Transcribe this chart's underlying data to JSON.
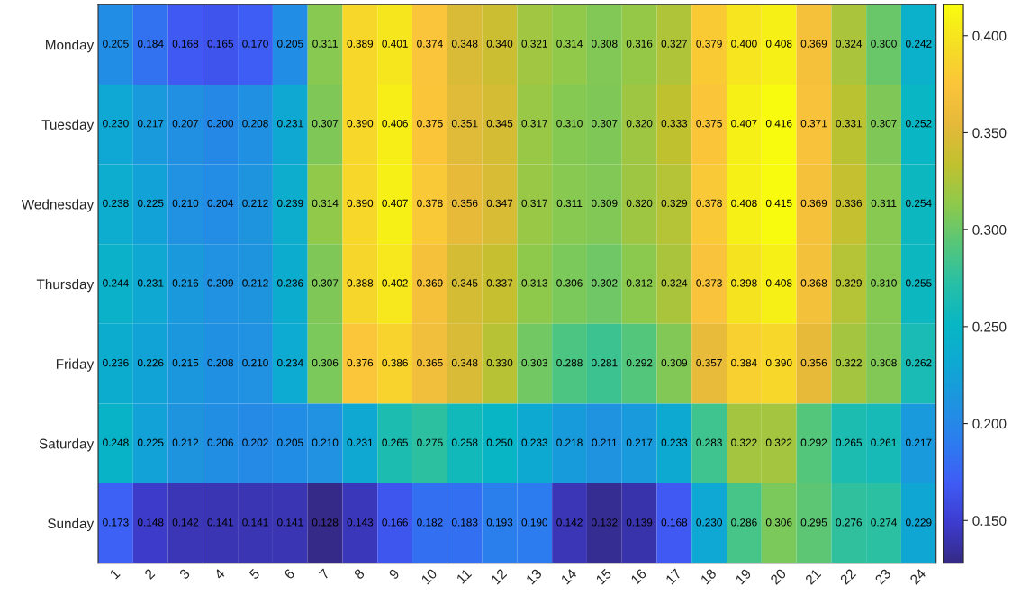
{
  "chart_data": {
    "type": "heatmap",
    "categories": [
      "1",
      "2",
      "3",
      "4",
      "5",
      "6",
      "7",
      "8",
      "9",
      "10",
      "11",
      "12",
      "13",
      "14",
      "15",
      "16",
      "17",
      "18",
      "19",
      "20",
      "21",
      "22",
      "23",
      "24"
    ],
    "y_categories": [
      "Monday",
      "Tuesday",
      "Wednesday",
      "Thursday",
      "Friday",
      "Saturday",
      "Sunday"
    ],
    "cells": [
      [
        0.205,
        0.184,
        0.168,
        0.165,
        0.17,
        0.205,
        0.311,
        0.389,
        0.401,
        0.374,
        0.348,
        0.34,
        0.321,
        0.314,
        0.308,
        0.316,
        0.327,
        0.379,
        0.4,
        0.408,
        0.369,
        0.324,
        0.3,
        0.242
      ],
      [
        0.23,
        0.217,
        0.207,
        0.2,
        0.208,
        0.231,
        0.307,
        0.39,
        0.406,
        0.375,
        0.351,
        0.345,
        0.317,
        0.31,
        0.307,
        0.32,
        0.333,
        0.375,
        0.407,
        0.416,
        0.371,
        0.331,
        0.307,
        0.252
      ],
      [
        0.238,
        0.225,
        0.21,
        0.204,
        0.212,
        0.239,
        0.314,
        0.39,
        0.407,
        0.378,
        0.356,
        0.347,
        0.317,
        0.311,
        0.309,
        0.32,
        0.329,
        0.378,
        0.408,
        0.415,
        0.369,
        0.336,
        0.311,
        0.254
      ],
      [
        0.244,
        0.231,
        0.216,
        0.209,
        0.212,
        0.236,
        0.307,
        0.388,
        0.402,
        0.369,
        0.345,
        0.337,
        0.313,
        0.306,
        0.302,
        0.312,
        0.324,
        0.373,
        0.398,
        0.408,
        0.368,
        0.329,
        0.31,
        0.255
      ],
      [
        0.236,
        0.226,
        0.215,
        0.208,
        0.21,
        0.234,
        0.306,
        0.376,
        0.386,
        0.365,
        0.348,
        0.33,
        0.303,
        0.288,
        0.281,
        0.292,
        0.309,
        0.357,
        0.384,
        0.39,
        0.356,
        0.322,
        0.308,
        0.262
      ],
      [
        0.248,
        0.225,
        0.212,
        0.206,
        0.202,
        0.205,
        0.21,
        0.231,
        0.265,
        0.275,
        0.258,
        0.25,
        0.233,
        0.218,
        0.211,
        0.217,
        0.233,
        0.283,
        0.322,
        0.322,
        0.292,
        0.265,
        0.261,
        0.217
      ],
      [
        0.173,
        0.148,
        0.142,
        0.141,
        0.141,
        0.141,
        0.128,
        0.143,
        0.166,
        0.182,
        0.183,
        0.193,
        0.19,
        0.142,
        0.132,
        0.139,
        0.168,
        0.23,
        0.286,
        0.306,
        0.295,
        0.276,
        0.274,
        0.229
      ]
    ],
    "cell_labels": [
      [
        "0.205",
        "0.184",
        "0.168",
        "0.165",
        "0.170",
        "0.205",
        "0.311",
        "0.389",
        "0.401",
        "0.374",
        "0.348",
        "0.340",
        "0.321",
        "0.314",
        "0.308",
        "0.316",
        "0.327",
        "0.379",
        "0.400",
        "0.408",
        "0.369",
        "0.324",
        "0.300",
        "0.242"
      ],
      [
        "0.230",
        "0.217",
        "0.207",
        "0.200",
        "0.208",
        "0.231",
        "0.307",
        "0.390",
        "0.406",
        "0.375",
        "0.351",
        "0.345",
        "0.317",
        "0.310",
        "0.307",
        "0.320",
        "0.333",
        "0.375",
        "0.407",
        "0.416",
        "0.371",
        "0.331",
        "0.307",
        "0.252"
      ],
      [
        "0.238",
        "0.225",
        "0.210",
        "0.204",
        "0.212",
        "0.239",
        "0.314",
        "0.390",
        "0.407",
        "0.378",
        "0.356",
        "0.347",
        "0.317",
        "0.311",
        "0.309",
        "0.320",
        "0.329",
        "0.378",
        "0.408",
        "0.415",
        "0.369",
        "0.336",
        "0.311",
        "0.254"
      ],
      [
        "0.244",
        "0.231",
        "0.216",
        "0.209",
        "0.212",
        "0.236",
        "0.307",
        "0.388",
        "0.402",
        "0.369",
        "0.345",
        "0.337",
        "0.313",
        "0.306",
        "0.302",
        "0.312",
        "0.324",
        "0.373",
        "0.398",
        "0.408",
        "0.368",
        "0.329",
        "0.310",
        "0.255"
      ],
      [
        "0.236",
        "0.226",
        "0.215",
        "0.208",
        "0.210",
        "0.234",
        "0.306",
        "0.376",
        "0.386",
        "0.365",
        "0.348",
        "0.330",
        "0.303",
        "0.288",
        "0.281",
        "0.292",
        "0.309",
        "0.357",
        "0.384",
        "0.390",
        "0.356",
        "0.322",
        "0.308",
        "0.262"
      ],
      [
        "0.248",
        "0.225",
        "0.212",
        "0.206",
        "0.202",
        "0.205",
        "0.210",
        "0.231",
        "0.265",
        "0.275",
        "0.258",
        "0.250",
        "0.233",
        "0.218",
        "0.211",
        "0.217",
        "0.233",
        "0.283",
        "0.322",
        "0.322",
        "0.292",
        "0.265",
        "0.261",
        "0.217"
      ],
      [
        "0.173",
        "0.148",
        "0.142",
        "0.141",
        "0.141",
        "0.141",
        "0.128",
        "0.143",
        "0.166",
        "0.182",
        "0.183",
        "0.193",
        "0.190",
        "0.142",
        "0.132",
        "0.139",
        "0.168",
        "0.230",
        "0.286",
        "0.306",
        "0.295",
        "0.276",
        "0.274",
        "0.229"
      ]
    ],
    "clim": [
      0.128,
      0.416
    ],
    "cticks": [
      {
        "value": 0.15,
        "label": "0.150"
      },
      {
        "value": 0.2,
        "label": "0.200"
      },
      {
        "value": 0.25,
        "label": "0.250"
      },
      {
        "value": 0.3,
        "label": "0.300"
      },
      {
        "value": 0.35,
        "label": "0.350"
      },
      {
        "value": 0.4,
        "label": "0.400"
      }
    ]
  }
}
